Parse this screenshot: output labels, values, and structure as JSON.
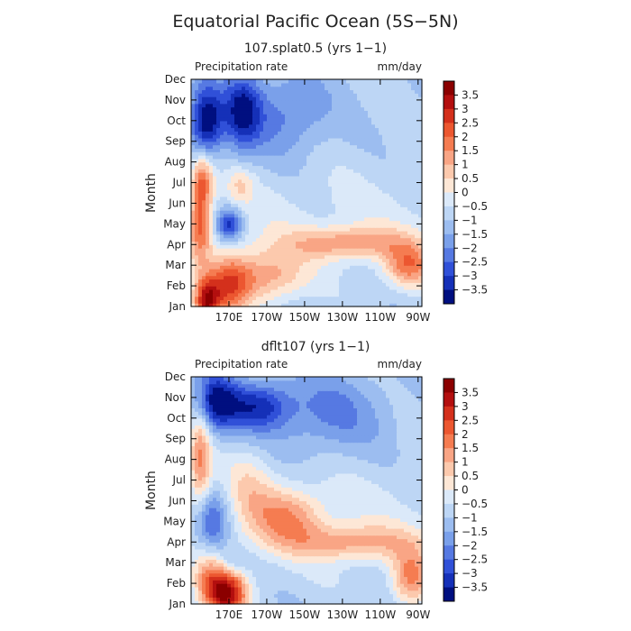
{
  "figure_title": "Equatorial Pacific Ocean (5S−5N)",
  "colorbar": {
    "labels": [
      "3.5",
      "3",
      "2.5",
      "2",
      "1.5",
      "1",
      "0.5",
      "0",
      "−0.5",
      "−1",
      "−1.5",
      "−2",
      "−2.5",
      "−3",
      "−3.5"
    ],
    "colors": [
      "#8b0000",
      "#b30f0f",
      "#d4301c",
      "#ec5730",
      "#f57c51",
      "#f9a585",
      "#fcc9ad",
      "#fde7d6",
      "#dbe9f9",
      "#bdd6f5",
      "#9cbdf0",
      "#7aa0ea",
      "#5679e2",
      "#3050d8",
      "#1530b8",
      "#000f80"
    ]
  },
  "chart_data": [
    {
      "type": "heatmap",
      "title": "107.splat0.5 (yrs 1−1)",
      "variable": "Precipitation rate",
      "units": "mm/day",
      "xlabel": "",
      "ylabel": "Month",
      "x_ticks": [
        "170E",
        "170W",
        "150W",
        "130W",
        "110W",
        "90W"
      ],
      "y_ticks": [
        "Jan",
        "Feb",
        "Mar",
        "Apr",
        "May",
        "Jun",
        "Jul",
        "Aug",
        "Sep",
        "Oct",
        "Nov",
        "Dec"
      ],
      "xlim_lon": [
        150,
        272
      ],
      "levels": [
        -3.5,
        -3,
        -2.5,
        -2,
        -1.5,
        -1,
        -0.5,
        0,
        0.5,
        1,
        1.5,
        2,
        2.5,
        3,
        3.5
      ],
      "features": [
        {
          "lon": 158,
          "month": 1.2,
          "value": 3.8,
          "sx": 5,
          "sy": 0.8
        },
        {
          "lon": 170,
          "month": 2.0,
          "value": 2.6,
          "sx": 8,
          "sy": 1.0
        },
        {
          "lon": 190,
          "month": 2.5,
          "value": 2.0,
          "sx": 14,
          "sy": 0.9
        },
        {
          "lon": 233,
          "month": 4.1,
          "value": 2.0,
          "sx": 22,
          "sy": 0.55
        },
        {
          "lon": 265,
          "month": 3.0,
          "value": 2.3,
          "sx": 9,
          "sy": 0.75
        },
        {
          "lon": 155,
          "month": 5.0,
          "value": 2.4,
          "sx": 4,
          "sy": 1.3
        },
        {
          "lon": 156,
          "month": 7.2,
          "value": 2.4,
          "sx": 4,
          "sy": 0.9
        },
        {
          "lon": 176,
          "month": 6.9,
          "value": 1.0,
          "sx": 5,
          "sy": 0.6
        },
        {
          "lon": 170,
          "month": 5.0,
          "value": -2.6,
          "sx": 5,
          "sy": 0.55
        },
        {
          "lon": 158,
          "month": 10.0,
          "value": -3.2,
          "sx": 6,
          "sy": 1.2
        },
        {
          "lon": 177,
          "month": 10.5,
          "value": -2.5,
          "sx": 7,
          "sy": 1.3
        },
        {
          "lon": 200,
          "month": 10.3,
          "value": -1.3,
          "sx": 16,
          "sy": 1.4
        }
      ]
    },
    {
      "type": "heatmap",
      "title": "dflt107 (yrs 1−1)",
      "variable": "Precipitation rate",
      "units": "mm/day",
      "xlabel": "",
      "ylabel": "Month",
      "x_ticks": [
        "170E",
        "170W",
        "150W",
        "130W",
        "110W",
        "90W"
      ],
      "y_ticks": [
        "Jan",
        "Feb",
        "Mar",
        "Apr",
        "May",
        "Jun",
        "Jul",
        "Aug",
        "Sep",
        "Oct",
        "Nov",
        "Dec"
      ],
      "xlim_lon": [
        150,
        272
      ],
      "levels": [
        -3.5,
        -3,
        -2.5,
        -2,
        -1.5,
        -1,
        -0.5,
        0,
        0.5,
        1,
        1.5,
        2,
        2.5,
        3,
        3.5
      ],
      "features": [
        {
          "lon": 170,
          "month": 1.5,
          "value": 3.8,
          "sx": 7,
          "sy": 0.9
        },
        {
          "lon": 160,
          "month": 2.0,
          "value": 2.2,
          "sx": 6,
          "sy": 1.0
        },
        {
          "lon": 200,
          "month": 5.2,
          "value": 1.9,
          "sx": 14,
          "sy": 1.0
        },
        {
          "lon": 235,
          "month": 4.0,
          "value": 1.8,
          "sx": 22,
          "sy": 0.6
        },
        {
          "lon": 266,
          "month": 2.3,
          "value": 2.3,
          "sx": 7,
          "sy": 1.0
        },
        {
          "lon": 155,
          "month": 8.0,
          "value": 2.4,
          "sx": 4,
          "sy": 1.8
        },
        {
          "lon": 180,
          "month": 6.8,
          "value": 0.9,
          "sx": 9,
          "sy": 1.2
        },
        {
          "lon": 160,
          "month": 5.0,
          "value": -2.2,
          "sx": 7,
          "sy": 1.1
        },
        {
          "lon": 163,
          "month": 10.8,
          "value": -2.7,
          "sx": 8,
          "sy": 1.0
        },
        {
          "lon": 185,
          "month": 10.6,
          "value": -2.2,
          "sx": 12,
          "sy": 0.8
        },
        {
          "lon": 222,
          "month": 10.2,
          "value": -1.2,
          "sx": 22,
          "sy": 1.4
        },
        {
          "lon": 172,
          "month": 3.0,
          "value": -1.0,
          "sx": 6,
          "sy": 0.5
        }
      ]
    }
  ]
}
